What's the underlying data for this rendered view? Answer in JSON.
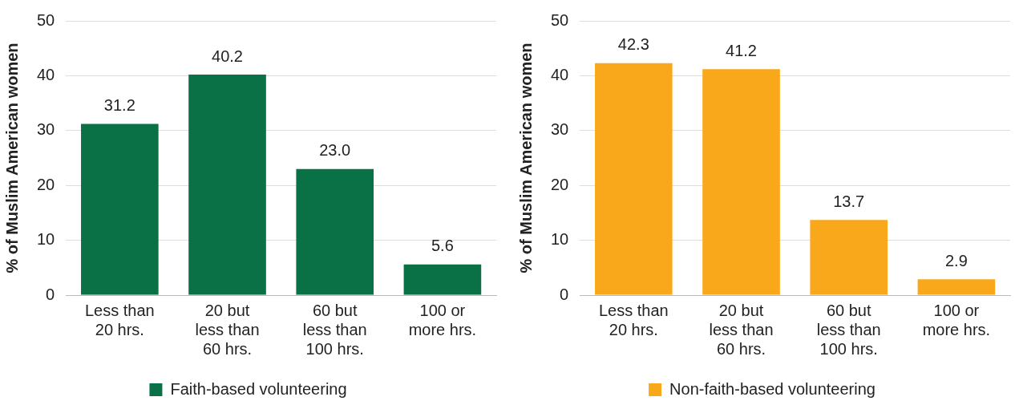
{
  "chart_data": [
    {
      "type": "bar",
      "ylabel": "% of Muslim American women",
      "categories": [
        "Less than 20 hrs.",
        "20 but less than 60 hrs.",
        "60 but less than 100 hrs.",
        "100 or more hrs."
      ],
      "series": [
        {
          "name": "Faith-based volunteering",
          "color": "#0a7045",
          "values": [
            31.2,
            40.2,
            23.0,
            5.6
          ],
          "value_labels": [
            "31.2",
            "40.2",
            "23.0",
            "5.6"
          ]
        }
      ],
      "ylim": [
        0,
        50
      ],
      "yticks": [
        0,
        10,
        20,
        30,
        40,
        50
      ],
      "grid": "y",
      "legend": "bottom"
    },
    {
      "type": "bar",
      "ylabel": "% of Muslim American women",
      "categories": [
        "Less than 20 hrs.",
        "20 but less than 60 hrs.",
        "60 but less than 100 hrs.",
        "100 or more hrs."
      ],
      "series": [
        {
          "name": "Non-faith-based volunteering",
          "color": "#f9a81c",
          "values": [
            42.3,
            41.2,
            13.7,
            2.9
          ],
          "value_labels": [
            "42.3",
            "41.2",
            "13.7",
            "2.9"
          ]
        }
      ],
      "ylim": [
        0,
        50
      ],
      "yticks": [
        0,
        10,
        20,
        30,
        40,
        50
      ],
      "grid": "y",
      "legend": "bottom"
    }
  ]
}
